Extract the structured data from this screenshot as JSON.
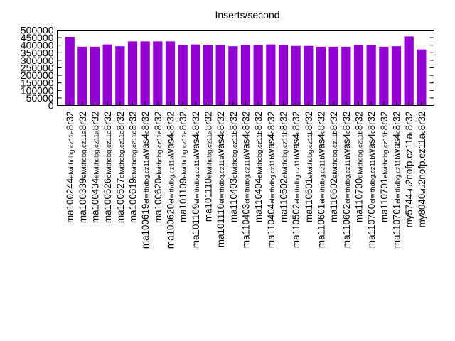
{
  "chart_data": {
    "type": "bar",
    "title": "Inserts/second",
    "xlabel": "",
    "ylabel": "",
    "ylim": [
      0,
      500000
    ],
    "yticks": [
      0,
      50000,
      100000,
      150000,
      200000,
      250000,
      300000,
      350000,
      400000,
      450000,
      500000
    ],
    "color": "#9400d3",
    "grid": false,
    "categories": [
      "ma100244_rel_withdbg.cz11a_c8r32",
      "ma100339_rel_withdbg.cz11a_c8r32",
      "ma100434_rel_withdbg.cz11a_c8r32",
      "ma100526_rel_withdbg.cz11a_c8r32",
      "ma100527_rel_withdbg.cz11a_c8r32",
      "ma100619_rel_withdbg.cz11a_c8r32",
      "ma100619_rel_withdbg.cz11a_with_was4_c8r32",
      "ma100620_rel_withdbg.cz11a_c8r32",
      "ma100620_rel_withdbg.cz11a_with_was4_c8r32",
      "ma101109_rel_withdbg.cz11a_c8r32",
      "ma101109_rel_withdbg.cz11a_with_was4_c8r32",
      "ma101110_rel_withdbg.cz11a_c8r32",
      "ma101110_rel_withdbg.cz11a_with_was4_c8r32",
      "ma110403_rel_withdbg.cz11b_c8r32",
      "ma110403_rel_withdbg.cz11b_with_was4_c8r32",
      "ma110404_rel_withdbg.cz11b_c8r32",
      "ma110404_rel_withdbg.cz11b_with_was4_c8r32",
      "ma110502_rel_withdbg.cz11b_c8r32",
      "ma110502_rel_withdbg.cz11b_with_was4_c8r32",
      "ma110601_rel_withdbg.cz11b_c8r32",
      "ma110601_rel_withdbg.cz11b_with_was4_c8r32",
      "ma110602_rel_withdbg.cz11b_c8r32",
      "ma110602_rel_withdbg.cz11b_with_was4_c8r32",
      "ma110700_rel_withdbg.cz11b_c8r32",
      "ma110700_rel_withdbg.cz11b_with_was4_c8r32",
      "ma110701_rel_withdbg.cz11b_c8r32",
      "ma110701_rel_withdbg.cz11b_with_was4_c8r32",
      "my5744_rel_o2nofp.cz11a_c8r32",
      "my8040_rel_o2nofp.cz11a_c8r32"
    ],
    "category_parts": [
      [
        [
          "ma100244",
          "n"
        ],
        [
          "el",
          "s"
        ],
        [
          "withdbg.cz11a",
          "s"
        ],
        [
          "8r32",
          "n"
        ]
      ],
      [
        [
          "ma100339",
          "n"
        ],
        [
          "el",
          "s"
        ],
        [
          "withdbg.cz11a",
          "s"
        ],
        [
          "8r32",
          "n"
        ]
      ],
      [
        [
          "ma100434",
          "n"
        ],
        [
          "el",
          "s"
        ],
        [
          "withdbg.cz11a",
          "s"
        ],
        [
          "8r32",
          "n"
        ]
      ],
      [
        [
          "ma100526",
          "n"
        ],
        [
          "el",
          "s"
        ],
        [
          "withdbg.cz11a",
          "s"
        ],
        [
          "8r32",
          "n"
        ]
      ],
      [
        [
          "ma100527",
          "n"
        ],
        [
          "el",
          "s"
        ],
        [
          "withdbg.cz11a",
          "s"
        ],
        [
          "8r32",
          "n"
        ]
      ],
      [
        [
          "ma100619",
          "n"
        ],
        [
          "el",
          "s"
        ],
        [
          "withdbg.cz11a",
          "s"
        ],
        [
          "8r32",
          "n"
        ]
      ],
      [
        [
          "ma100619",
          "n"
        ],
        [
          "el",
          "s"
        ],
        [
          "withdbg.cz11a",
          "s"
        ],
        [
          "was4",
          "n"
        ],
        [
          "c",
          "s"
        ],
        [
          "8r32",
          "n"
        ]
      ],
      [
        [
          "ma100620",
          "n"
        ],
        [
          "el",
          "s"
        ],
        [
          "withdbg.cz11a",
          "s"
        ],
        [
          "8r32",
          "n"
        ]
      ],
      [
        [
          "ma100620",
          "n"
        ],
        [
          "el",
          "s"
        ],
        [
          "withdbg.cz11a",
          "s"
        ],
        [
          "was4",
          "n"
        ],
        [
          "c",
          "s"
        ],
        [
          "8r32",
          "n"
        ]
      ],
      [
        [
          "ma101109",
          "n"
        ],
        [
          "el",
          "s"
        ],
        [
          "withdbg.cz11a",
          "s"
        ],
        [
          "8r32",
          "n"
        ]
      ],
      [
        [
          "ma101109",
          "n"
        ],
        [
          "el",
          "s"
        ],
        [
          "withdbg.cz11a",
          "s"
        ],
        [
          "was4",
          "n"
        ],
        [
          "c",
          "s"
        ],
        [
          "8r32",
          "n"
        ]
      ],
      [
        [
          "ma101110",
          "n"
        ],
        [
          "el",
          "s"
        ],
        [
          "withdbg.cz11a",
          "s"
        ],
        [
          "8r32",
          "n"
        ]
      ],
      [
        [
          "ma101110",
          "n"
        ],
        [
          "el",
          "s"
        ],
        [
          "withdbg.cz11a",
          "s"
        ],
        [
          "was4",
          "n"
        ],
        [
          "c",
          "s"
        ],
        [
          "8r32",
          "n"
        ]
      ],
      [
        [
          "ma110403",
          "n"
        ],
        [
          "el",
          "s"
        ],
        [
          "withdbg.cz11b",
          "s"
        ],
        [
          "8r32",
          "n"
        ]
      ],
      [
        [
          "ma110403",
          "n"
        ],
        [
          "el",
          "s"
        ],
        [
          "withdbg.cz11b",
          "s"
        ],
        [
          "was4",
          "n"
        ],
        [
          "c",
          "s"
        ],
        [
          "8r32",
          "n"
        ]
      ],
      [
        [
          "ma110404",
          "n"
        ],
        [
          "el",
          "s"
        ],
        [
          "withdbg.cz11b",
          "s"
        ],
        [
          "8r32",
          "n"
        ]
      ],
      [
        [
          "ma110404",
          "n"
        ],
        [
          "el",
          "s"
        ],
        [
          "withdbg.cz11b",
          "s"
        ],
        [
          "was4",
          "n"
        ],
        [
          "c",
          "s"
        ],
        [
          "8r32",
          "n"
        ]
      ],
      [
        [
          "ma110502",
          "n"
        ],
        [
          "el",
          "s"
        ],
        [
          "withdbg.cz11b",
          "s"
        ],
        [
          "8r32",
          "n"
        ]
      ],
      [
        [
          "ma110502",
          "n"
        ],
        [
          "el",
          "s"
        ],
        [
          "withdbg.cz11b",
          "s"
        ],
        [
          "was4",
          "n"
        ],
        [
          "c",
          "s"
        ],
        [
          "8r32",
          "n"
        ]
      ],
      [
        [
          "ma110601",
          "n"
        ],
        [
          "el",
          "s"
        ],
        [
          "withdbg.cz11b",
          "s"
        ],
        [
          "8r32",
          "n"
        ]
      ],
      [
        [
          "ma110601",
          "n"
        ],
        [
          "el",
          "s"
        ],
        [
          "withdbg.cz11b",
          "s"
        ],
        [
          "was4",
          "n"
        ],
        [
          "c",
          "s"
        ],
        [
          "8r32",
          "n"
        ]
      ],
      [
        [
          "ma110602",
          "n"
        ],
        [
          "el",
          "s"
        ],
        [
          "withdbg.cz11b",
          "s"
        ],
        [
          "8r32",
          "n"
        ]
      ],
      [
        [
          "ma110602",
          "n"
        ],
        [
          "el",
          "s"
        ],
        [
          "withdbg.cz11b",
          "s"
        ],
        [
          "was4",
          "n"
        ],
        [
          "c",
          "s"
        ],
        [
          "8r32",
          "n"
        ]
      ],
      [
        [
          "ma110700",
          "n"
        ],
        [
          "el",
          "s"
        ],
        [
          "withdbg.cz11b",
          "s"
        ],
        [
          "8r32",
          "n"
        ]
      ],
      [
        [
          "ma110700",
          "n"
        ],
        [
          "el",
          "s"
        ],
        [
          "withdbg.cz11b",
          "s"
        ],
        [
          "was4",
          "n"
        ],
        [
          "c",
          "s"
        ],
        [
          "8r32",
          "n"
        ]
      ],
      [
        [
          "ma110701",
          "n"
        ],
        [
          "el",
          "s"
        ],
        [
          "withdbg.cz11b",
          "s"
        ],
        [
          "8r32",
          "n"
        ]
      ],
      [
        [
          "ma110701",
          "n"
        ],
        [
          "el",
          "s"
        ],
        [
          "withdbg.cz11b",
          "s"
        ],
        [
          "was4",
          "n"
        ],
        [
          "c",
          "s"
        ],
        [
          "8r32",
          "n"
        ]
      ],
      [
        [
          "my5744",
          "n"
        ],
        [
          "el",
          "s"
        ],
        [
          "o",
          "s"
        ],
        [
          "2nofp.cz11a",
          "n"
        ],
        [
          "c",
          "s"
        ],
        [
          "8r32",
          "n"
        ]
      ],
      [
        [
          "my8040",
          "n"
        ],
        [
          "el",
          "s"
        ],
        [
          "o",
          "s"
        ],
        [
          "2nofp.cz11a",
          "n"
        ],
        [
          "c",
          "s"
        ],
        [
          "8r32",
          "n"
        ]
      ]
    ],
    "values": [
      455000,
      390000,
      390000,
      405000,
      393000,
      425000,
      425000,
      425000,
      425000,
      400000,
      405000,
      403000,
      400000,
      393000,
      400000,
      400000,
      405000,
      400000,
      395000,
      395000,
      390000,
      390000,
      390000,
      400000,
      400000,
      390000,
      393000,
      458000,
      372000
    ]
  }
}
